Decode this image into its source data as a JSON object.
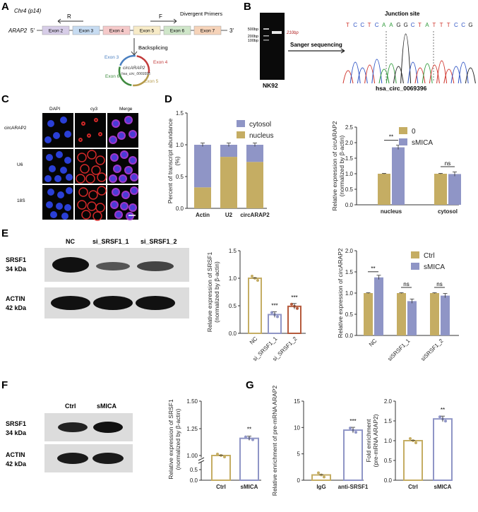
{
  "panels": {
    "A": {
      "label": "A",
      "chr": "Chr4 (p14)",
      "gene": "ARAP2",
      "five": "5'",
      "three": "3'",
      "exons": [
        "Exon 2",
        "Exon 3",
        "Exon 4",
        "Exon 5",
        "Exon 6",
        "Exon 7"
      ],
      "exon_colors": [
        "#d7cde8",
        "#c7dcf2",
        "#f5c9c9",
        "#f7ebc7",
        "#cfe6c9",
        "#f6d3b9"
      ],
      "primer_r": "R",
      "primer_f": "F",
      "divergent": "Divergent Primers",
      "backsplicing": "Backsplicing",
      "circ_exons": [
        "Exon 3",
        "Exon 4",
        "Exon 5",
        "Exon 6"
      ],
      "circ_name": "circARAP2",
      "circ_id": "hsa_circ_0069396"
    },
    "B": {
      "label": "B",
      "ladder": [
        "500bp",
        "200bp",
        "100bp"
      ],
      "band": "210bp",
      "lane": "NK92",
      "arrow_label": "Sanger sequencing",
      "junction": "Junction site",
      "sequence": [
        "T",
        "C",
        "C",
        "T",
        "C",
        "A",
        "A",
        "G",
        "G",
        "C",
        "T",
        "A",
        "T",
        "T",
        "T",
        "C",
        "C",
        "G"
      ],
      "circ_id": "hsa_circ_0069396"
    },
    "C": {
      "label": "C",
      "cols": [
        "DAPI",
        "cy3",
        "Merge"
      ],
      "rows": [
        "circARAP2",
        "U6",
        "18S"
      ]
    },
    "D": {
      "label": "D"
    },
    "E": {
      "label": "E",
      "lanes": [
        "NC",
        "si_SRSF1_1",
        "si_SRSF1_2"
      ],
      "bands": [
        "SRSF1",
        "34 kDa",
        "ACTIN",
        "42 kDa"
      ]
    },
    "F": {
      "label": "F",
      "lanes": [
        "Ctrl",
        "sMICA"
      ],
      "bands": [
        "SRSF1",
        "34 kDa",
        "ACTIN",
        "42 kDa"
      ]
    },
    "G": {
      "label": "G"
    }
  },
  "chart_data": [
    {
      "id": "D1",
      "type": "bar",
      "stacked": true,
      "categories": [
        "Actin",
        "U2",
        "circARAP2"
      ],
      "series": [
        {
          "name": "nucleus",
          "values": [
            0.33,
            0.81,
            0.73
          ],
          "color": "#c5ad63"
        },
        {
          "name": "cytosol",
          "values": [
            0.67,
            0.19,
            0.27
          ],
          "color": "#8f95c6"
        }
      ],
      "ylabel": "Percent of transcript abundance (%)",
      "ylim": [
        0,
        1.5
      ],
      "yticks": [
        "0.0",
        "0.5",
        "1.0",
        "1.5"
      ]
    },
    {
      "id": "D2",
      "type": "bar",
      "categories": [
        "nucleus",
        "cytosol"
      ],
      "series": [
        {
          "name": "0",
          "values": [
            1.0,
            1.0
          ],
          "color": "#c5ad63"
        },
        {
          "name": "sMICA",
          "values": [
            1.85,
            0.99
          ],
          "color": "#8f95c6"
        }
      ],
      "ylabel": "Relative expression of circARAP2 (normalized by β-actin)",
      "ylim": [
        0,
        2.5
      ],
      "yticks": [
        "0.0",
        "0.5",
        "1.0",
        "1.5",
        "2.0",
        "2.5"
      ],
      "annotations": [
        "**",
        "ns"
      ]
    },
    {
      "id": "E1",
      "type": "bar",
      "categories": [
        "NC",
        "si_SRSF1_1",
        "si_SRSF1_2"
      ],
      "values": [
        1.0,
        0.34,
        0.49
      ],
      "colors": [
        "#c5ad63",
        "#8f95c6",
        "#b55a3c"
      ],
      "ylabel": "Relative expression of SRSF1 (normalized by β-actin)",
      "ylim": [
        0,
        1.5
      ],
      "yticks": [
        "0.0",
        "0.5",
        "1.0",
        "1.5"
      ],
      "annotations": [
        "***",
        "***"
      ]
    },
    {
      "id": "E2",
      "type": "bar",
      "categories": [
        "NC",
        "siSRSF1_1",
        "siSRSF1_2"
      ],
      "series": [
        {
          "name": "Ctrl",
          "values": [
            1.0,
            1.0,
            1.0
          ],
          "color": "#c5ad63"
        },
        {
          "name": "sMICA",
          "values": [
            1.37,
            0.81,
            0.94
          ],
          "color": "#8f95c6"
        }
      ],
      "ylabel": "Relative expression of circARAP2",
      "ylim": [
        0,
        2.0
      ],
      "yticks": [
        "0.0",
        "0.5",
        "1.0",
        "1.5",
        "2.0"
      ],
      "annotations": [
        "**",
        "ns",
        "ns"
      ]
    },
    {
      "id": "F1",
      "type": "bar",
      "categories": [
        "Ctrl",
        "sMICA"
      ],
      "values": [
        1.0,
        1.16
      ],
      "colors": [
        "#c5ad63",
        "#8f95c6"
      ],
      "ylabel": "Relative expression of SRSF1 (normalized by β-actin)",
      "yticks": [
        "0.0",
        "0.5",
        "1.00",
        "1.25",
        "1.50"
      ],
      "annotations": [
        "**"
      ]
    },
    {
      "id": "G1",
      "type": "bar",
      "categories": [
        "IgG",
        "anti-SRSF1"
      ],
      "values": [
        1.0,
        9.5
      ],
      "colors": [
        "#c5ad63",
        "#8f95c6"
      ],
      "ylabel": "Relative enrichment of pre-mRNA ARAP2",
      "ylim": [
        0,
        15
      ],
      "yticks": [
        "0",
        "5",
        "10",
        "15"
      ],
      "annotations": [
        "***"
      ]
    },
    {
      "id": "G2",
      "type": "bar",
      "categories": [
        "Ctrl",
        "sMICA"
      ],
      "values": [
        1.0,
        1.55
      ],
      "colors": [
        "#c5ad63",
        "#8f95c6"
      ],
      "ylabel": "Fold enrichment (pre-mRNA ARAP2)",
      "ylim": [
        0,
        2.0
      ],
      "yticks": [
        "0.0",
        "0.5",
        "1.0",
        "1.5",
        "2.0"
      ],
      "annotations": [
        "**"
      ]
    }
  ]
}
